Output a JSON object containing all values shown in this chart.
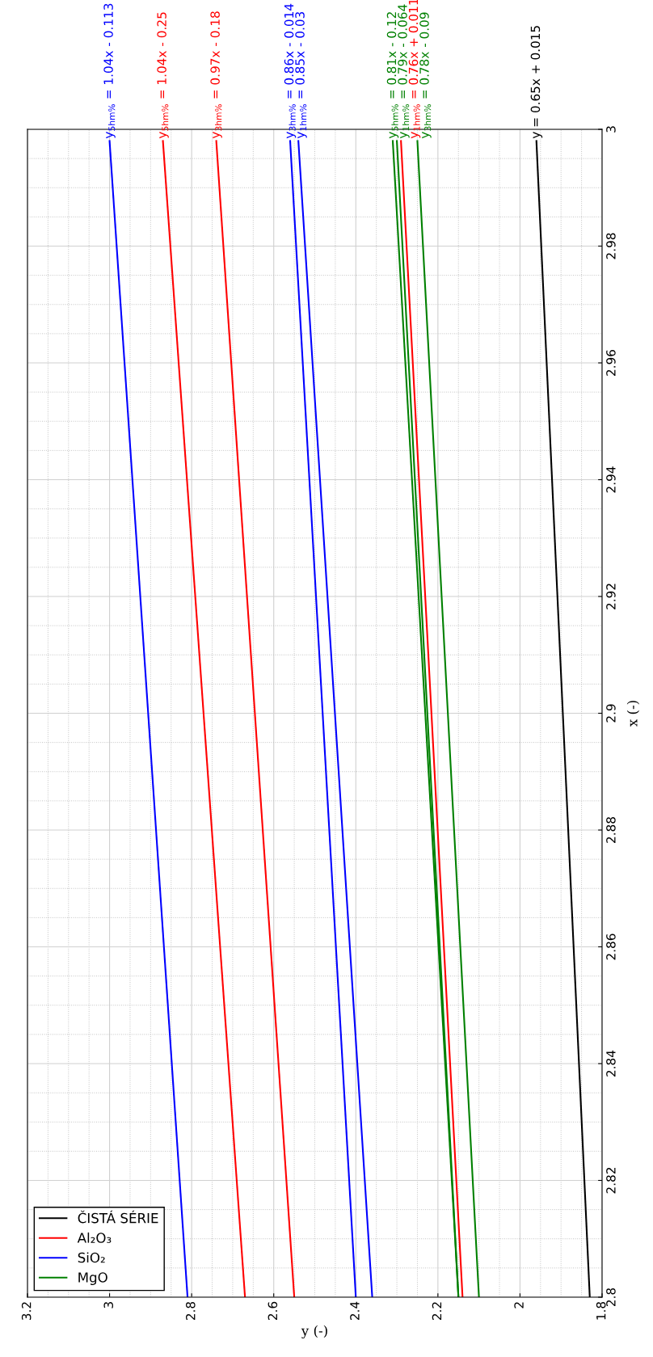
{
  "chart_data": {
    "type": "line",
    "xlabel": "y (-)",
    "ylabel": "x (-)",
    "xlim": [
      3.2,
      1.8
    ],
    "xticks": [
      3.2,
      3,
      2.8,
      2.6,
      2.4,
      2.2,
      2,
      1.8
    ],
    "ylim": [
      2.8,
      3
    ],
    "yticks": [
      2.8,
      2.82,
      2.84,
      2.86,
      2.88,
      2.9,
      2.92,
      2.94,
      2.96,
      2.98,
      3
    ],
    "grid": true,
    "legend": "bottom left",
    "marker": "none",
    "line_style": "solid",
    "series": [
      {
        "name": "ČISTÁ SÉRIE",
        "color": "#000000",
        "x": [
          1.83,
          1.96
        ],
        "values": [
          2.8,
          2.998
        ]
      },
      {
        "name": "Al₂O₃",
        "color": "#ff0000",
        "x": [
          2.67,
          2.87
        ],
        "values": [
          2.8,
          2.998
        ]
      },
      {
        "color": "#ff0000",
        "x": [
          2.55,
          2.74
        ],
        "values": [
          2.8,
          2.998
        ]
      },
      {
        "color": "#ff0000",
        "x": [
          2.14,
          2.29
        ],
        "values": [
          2.8,
          2.998
        ]
      },
      {
        "name": "SiO₂",
        "color": "#0000ff",
        "x": [
          2.81,
          3.0
        ],
        "values": [
          2.8,
          2.998
        ]
      },
      {
        "color": "#0000ff",
        "x": [
          2.4,
          2.56
        ],
        "values": [
          2.8,
          2.998
        ]
      },
      {
        "color": "#0000ff",
        "x": [
          2.36,
          2.54
        ],
        "values": [
          2.8,
          2.998
        ]
      },
      {
        "name": "MgO",
        "color": "#008000",
        "x": [
          2.15,
          2.31
        ],
        "values": [
          2.8,
          2.998
        ]
      },
      {
        "color": "#008000",
        "x": [
          2.15,
          2.3
        ],
        "values": [
          2.8,
          2.998
        ]
      },
      {
        "color": "#008000",
        "x": [
          2.1,
          2.25
        ],
        "values": [
          2.8,
          2.998
        ]
      }
    ],
    "annotations": [
      {
        "text": "y = 0.65x + 0.015",
        "x": 1.96,
        "y": 2.998
      },
      {
        "text": "y$_{5hm%}$ = 1.04x - 0.25",
        "x": 2.87,
        "y": 2.998
      },
      {
        "text": "y$_{3hm%}$ = 0.97x - 0.18",
        "x": 2.74,
        "y": 2.998
      },
      {
        "text": "y$_{1hm%}$ = 0.76x + 0.011",
        "x": 2.29,
        "y": 2.998
      },
      {
        "text": "y$_{5hm%}$ = 1.04x - 0.113",
        "x": 3.0,
        "y": 2.998
      },
      {
        "text": "y$_{3hm%}$ = 0.86x - 0.014",
        "x": 2.56,
        "y": 2.998
      },
      {
        "text": "y$_{1hm%}$ = 0.85x - 0.03",
        "x": 2.54,
        "y": 2.998
      },
      {
        "text": "y$_{5hm%}$ = 0.81x - 0.12",
        "x": 2.31,
        "y": 2.998
      },
      {
        "text": "y$_{1hm%}$ = 0.79x - 0.064",
        "x": 2.3,
        "y": 2.998
      },
      {
        "text": "y$_{3hm%}$ = 0.78x - 0.09",
        "x": 2.25,
        "y": 2.998
      }
    ]
  }
}
